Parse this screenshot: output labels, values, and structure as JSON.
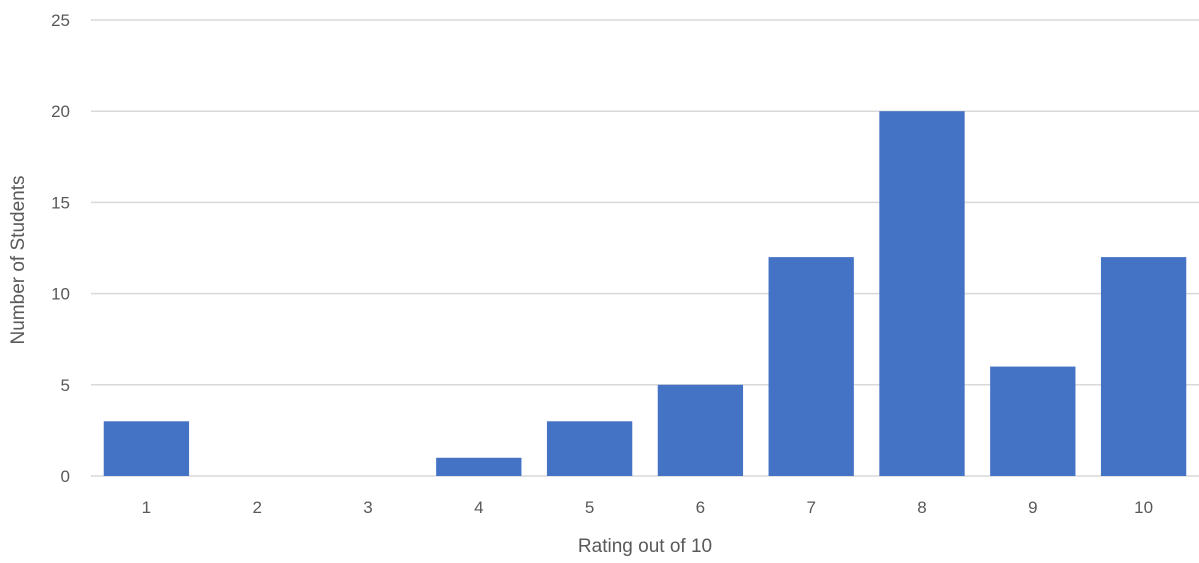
{
  "chart_data": {
    "type": "bar",
    "title": "",
    "xlabel": "Rating out of 10",
    "ylabel": "Number of Students",
    "categories": [
      "1",
      "2",
      "3",
      "4",
      "5",
      "6",
      "7",
      "8",
      "9",
      "10"
    ],
    "values": [
      3,
      0,
      0,
      1,
      3,
      5,
      12,
      20,
      6,
      12
    ],
    "ylim": [
      0,
      25
    ],
    "yticks": [
      0,
      5,
      10,
      15,
      20,
      25
    ],
    "grid": true,
    "legend": "none",
    "bar_color": "#4472C4",
    "grid_color": "#D9D9D9"
  }
}
